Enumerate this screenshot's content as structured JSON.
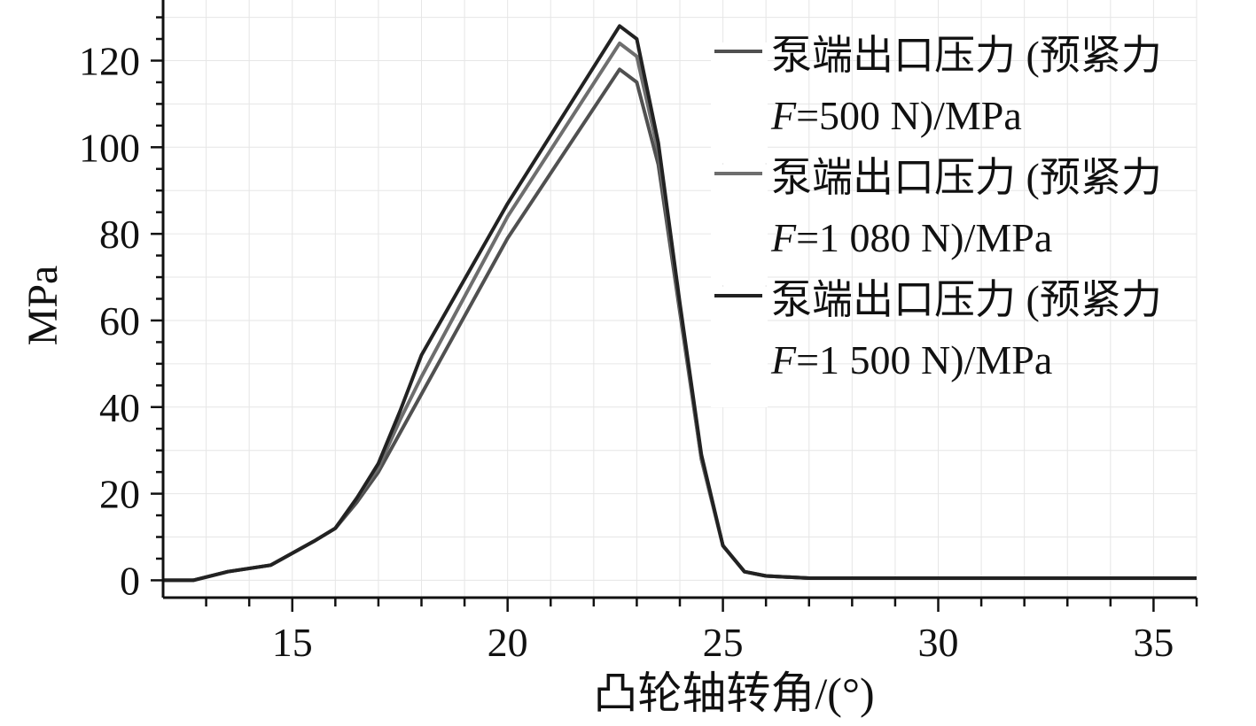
{
  "chart_data": {
    "type": "line",
    "xlabel": "凸轮轴转角/(°)",
    "ylabel": "MPa",
    "xlim": [
      12,
      36
    ],
    "ylim": [
      -4,
      134
    ],
    "xticks": [
      15,
      20,
      25,
      30,
      35
    ],
    "yticks": [
      0,
      20,
      40,
      60,
      80,
      100,
      120
    ],
    "grid": true,
    "legend_position": "top-right",
    "series": [
      {
        "name": "泵端出口压力 (预紧力 F=500 N)/MPa",
        "legend_line1": "泵端出口压力 (预紧力",
        "legend_line2_var": "F",
        "legend_line2_rest": "=500 N)/MPa",
        "color": "#505050",
        "x": [
          12,
          12.7,
          13.5,
          14.5,
          15.5,
          16,
          16.5,
          17,
          17.5,
          18,
          20,
          22.6,
          23,
          23.5,
          24,
          24.5,
          25,
          25.5,
          26,
          27,
          30,
          36
        ],
        "y": [
          0,
          0,
          2,
          3.5,
          9,
          12,
          18,
          25,
          34,
          43,
          79,
          118,
          115,
          96,
          62,
          28,
          8,
          2,
          1,
          0.5,
          0.5,
          0.5
        ]
      },
      {
        "name": "泵端出口压力 (预紧力 F=1 080 N)/MPa",
        "legend_line1": "泵端出口压力 (预紧力",
        "legend_line2_var": "F",
        "legend_line2_rest": "=1 080 N)/MPa",
        "color": "#6e6e6e",
        "x": [
          12,
          12.7,
          13.5,
          14.5,
          15.5,
          16,
          16.5,
          17,
          17.5,
          18,
          20,
          22.6,
          23,
          23.5,
          24,
          24.5,
          25,
          25.5,
          26,
          27,
          30,
          36
        ],
        "y": [
          0,
          0,
          2,
          3.5,
          9,
          12,
          19,
          26,
          37,
          47,
          84,
          124,
          121,
          99,
          63,
          28,
          8,
          2,
          1,
          0.5,
          0.5,
          0.5
        ]
      },
      {
        "name": "泵端出口压力 (预紧力 F=1 500 N)/MPa",
        "legend_line1": "泵端出口压力 (预紧力",
        "legend_line2_var": "F",
        "legend_line2_rest": "=1 500 N)/MPa",
        "color": "#222222",
        "x": [
          12,
          12.7,
          13.5,
          14.5,
          15.5,
          16,
          16.5,
          17,
          17.5,
          18,
          20,
          22.6,
          23,
          23.5,
          24,
          24.5,
          25,
          25.5,
          26,
          27,
          30,
          36
        ],
        "y": [
          0,
          0,
          2,
          3.5,
          9,
          12,
          19,
          27,
          39,
          52,
          87,
          128,
          125,
          101,
          64,
          29,
          8,
          2,
          1,
          0.5,
          0.5,
          0.5
        ]
      }
    ]
  }
}
